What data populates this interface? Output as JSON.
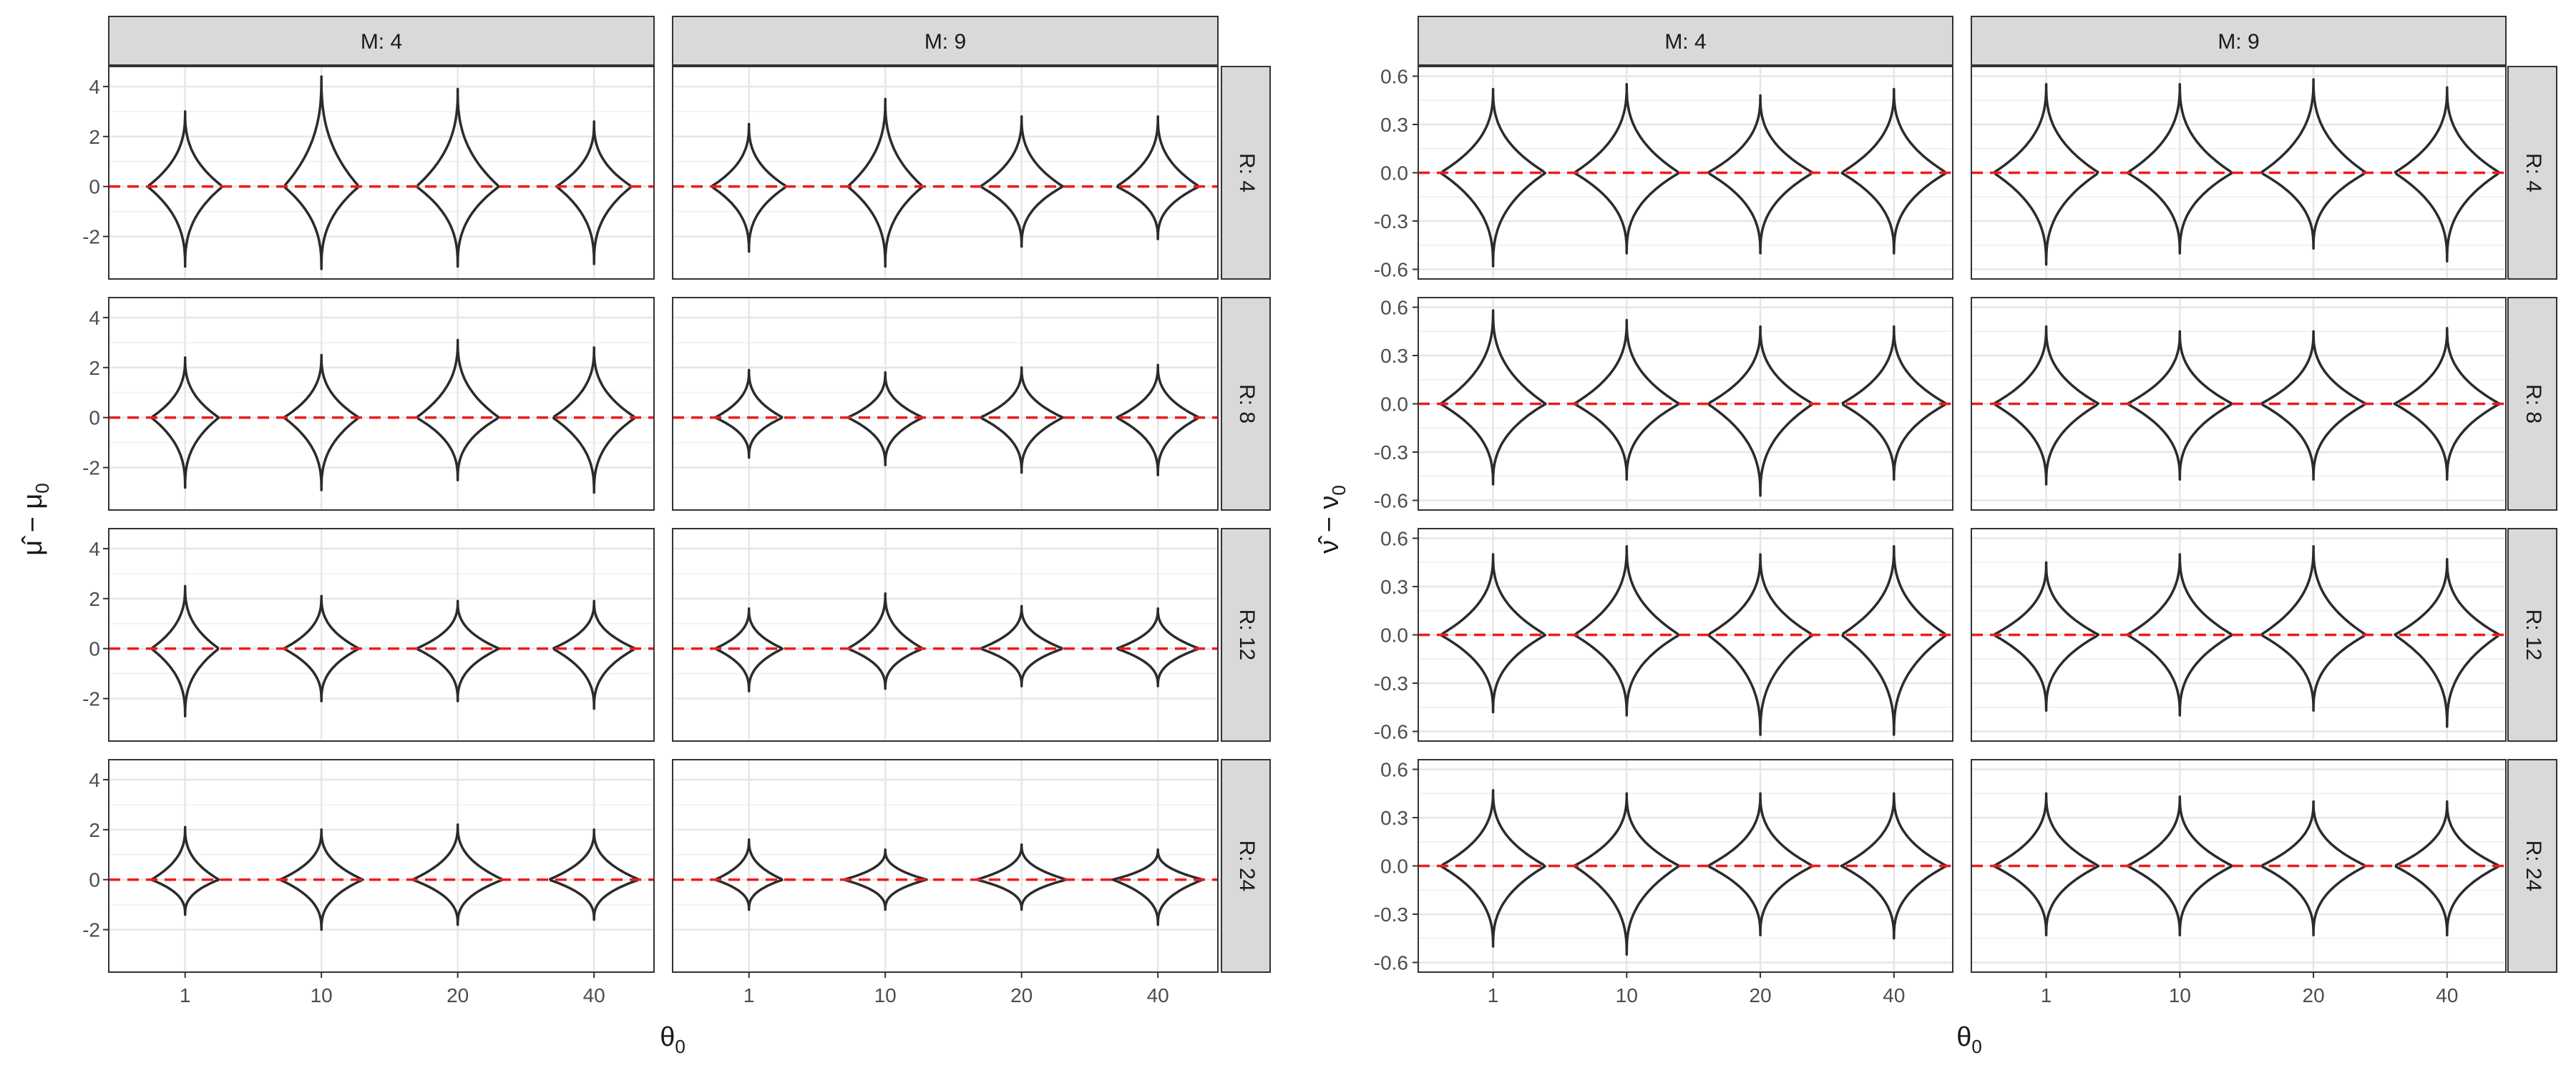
{
  "chart_data": [
    {
      "type": "violin",
      "ylabel_main": "μ̂ − μ",
      "ylabel_sub": "0",
      "xlabel_main": "θ",
      "xlabel_sub": "0",
      "col_facets": [
        "M: 4",
        "M: 9"
      ],
      "row_facets": [
        "R: 4",
        "R: 8",
        "R: 12",
        "R: 24"
      ],
      "categories": [
        "1",
        "10",
        "20",
        "40"
      ],
      "y_ticks": [
        -2,
        0,
        2,
        4
      ],
      "y_tick_labels": [
        "-2",
        "0",
        "2",
        "4"
      ],
      "ylim": [
        -3.7,
        4.8
      ],
      "reference_line": {
        "y": 0,
        "color": "#ee1c1c",
        "style": "dashed"
      },
      "panels": [
        {
          "row": "R: 4",
          "col": "M: 4",
          "violins": [
            {
              "min": -3.2,
              "max": 3.0,
              "width": 0.5
            },
            {
              "min": -3.3,
              "max": 4.4,
              "width": 0.5
            },
            {
              "min": -3.2,
              "max": 3.9,
              "width": 0.55
            },
            {
              "min": -3.1,
              "max": 2.6,
              "width": 0.5
            }
          ]
        },
        {
          "row": "R: 4",
          "col": "M: 9",
          "violins": [
            {
              "min": -2.6,
              "max": 2.5,
              "width": 0.5
            },
            {
              "min": -3.2,
              "max": 3.5,
              "width": 0.5
            },
            {
              "min": -2.4,
              "max": 2.8,
              "width": 0.55
            },
            {
              "min": -2.1,
              "max": 2.8,
              "width": 0.55
            }
          ]
        },
        {
          "row": "R: 8",
          "col": "M: 4",
          "violins": [
            {
              "min": -2.8,
              "max": 2.4,
              "width": 0.45
            },
            {
              "min": -2.9,
              "max": 2.5,
              "width": 0.5
            },
            {
              "min": -2.5,
              "max": 3.1,
              "width": 0.55
            },
            {
              "min": -3.0,
              "max": 2.8,
              "width": 0.55
            }
          ]
        },
        {
          "row": "R: 8",
          "col": "M: 9",
          "violins": [
            {
              "min": -1.6,
              "max": 1.9,
              "width": 0.45
            },
            {
              "min": -1.9,
              "max": 1.8,
              "width": 0.5
            },
            {
              "min": -2.2,
              "max": 2.0,
              "width": 0.55
            },
            {
              "min": -2.3,
              "max": 2.1,
              "width": 0.55
            }
          ]
        },
        {
          "row": "R: 12",
          "col": "M: 4",
          "violins": [
            {
              "min": -2.7,
              "max": 2.5,
              "width": 0.45
            },
            {
              "min": -2.1,
              "max": 2.1,
              "width": 0.5
            },
            {
              "min": -2.1,
              "max": 1.9,
              "width": 0.55
            },
            {
              "min": -2.4,
              "max": 1.9,
              "width": 0.55
            }
          ]
        },
        {
          "row": "R: 12",
          "col": "M: 9",
          "violins": [
            {
              "min": -1.7,
              "max": 1.6,
              "width": 0.45
            },
            {
              "min": -1.6,
              "max": 2.2,
              "width": 0.5
            },
            {
              "min": -1.5,
              "max": 1.7,
              "width": 0.55
            },
            {
              "min": -1.5,
              "max": 1.6,
              "width": 0.55
            }
          ]
        },
        {
          "row": "R: 24",
          "col": "M: 4",
          "violins": [
            {
              "min": -1.4,
              "max": 2.1,
              "width": 0.45
            },
            {
              "min": -2.0,
              "max": 2.0,
              "width": 0.55
            },
            {
              "min": -1.8,
              "max": 2.2,
              "width": 0.6
            },
            {
              "min": -1.6,
              "max": 2.0,
              "width": 0.6
            }
          ]
        },
        {
          "row": "R: 24",
          "col": "M: 9",
          "violins": [
            {
              "min": -1.2,
              "max": 1.6,
              "width": 0.45
            },
            {
              "min": -1.2,
              "max": 1.2,
              "width": 0.55
            },
            {
              "min": -1.2,
              "max": 1.4,
              "width": 0.6
            },
            {
              "min": -1.8,
              "max": 1.2,
              "width": 0.6
            }
          ]
        }
      ]
    },
    {
      "type": "violin",
      "ylabel_main": "ν̂ − ν",
      "ylabel_sub": "0",
      "xlabel_main": "θ",
      "xlabel_sub": "0",
      "col_facets": [
        "M: 4",
        "M: 9"
      ],
      "row_facets": [
        "R: 4",
        "R: 8",
        "R: 12",
        "R: 24"
      ],
      "categories": [
        "1",
        "10",
        "20",
        "40"
      ],
      "y_ticks": [
        -0.6,
        -0.3,
        0.0,
        0.3,
        0.6
      ],
      "y_tick_labels": [
        "-0.6",
        "-0.3",
        "0.0",
        "0.3",
        "0.6"
      ],
      "ylim": [
        -0.66,
        0.66
      ],
      "reference_line": {
        "y": 0,
        "color": "#ee1c1c",
        "style": "dashed"
      },
      "panels": [
        {
          "row": "R: 4",
          "col": "M: 4",
          "violins": [
            {
              "min": -0.58,
              "max": 0.52
            },
            {
              "min": -0.5,
              "max": 0.55
            },
            {
              "min": -0.5,
              "max": 0.48
            },
            {
              "min": -0.5,
              "max": 0.52
            }
          ]
        },
        {
          "row": "R: 4",
          "col": "M: 9",
          "violins": [
            {
              "min": -0.57,
              "max": 0.55
            },
            {
              "min": -0.5,
              "max": 0.55
            },
            {
              "min": -0.47,
              "max": 0.58
            },
            {
              "min": -0.55,
              "max": 0.53
            }
          ]
        },
        {
          "row": "R: 8",
          "col": "M: 4",
          "violins": [
            {
              "min": -0.5,
              "max": 0.58
            },
            {
              "min": -0.47,
              "max": 0.52
            },
            {
              "min": -0.57,
              "max": 0.48
            },
            {
              "min": -0.47,
              "max": 0.48
            }
          ]
        },
        {
          "row": "R: 8",
          "col": "M: 9",
          "violins": [
            {
              "min": -0.5,
              "max": 0.48
            },
            {
              "min": -0.47,
              "max": 0.45
            },
            {
              "min": -0.47,
              "max": 0.45
            },
            {
              "min": -0.47,
              "max": 0.47
            }
          ]
        },
        {
          "row": "R: 12",
          "col": "M: 4",
          "violins": [
            {
              "min": -0.48,
              "max": 0.5
            },
            {
              "min": -0.5,
              "max": 0.55
            },
            {
              "min": -0.62,
              "max": 0.5
            },
            {
              "min": -0.62,
              "max": 0.55
            }
          ]
        },
        {
          "row": "R: 12",
          "col": "M: 9",
          "violins": [
            {
              "min": -0.47,
              "max": 0.45
            },
            {
              "min": -0.5,
              "max": 0.5
            },
            {
              "min": -0.47,
              "max": 0.55
            },
            {
              "min": -0.57,
              "max": 0.47
            }
          ]
        },
        {
          "row": "R: 24",
          "col": "M: 4",
          "violins": [
            {
              "min": -0.5,
              "max": 0.47
            },
            {
              "min": -0.55,
              "max": 0.45
            },
            {
              "min": -0.43,
              "max": 0.45
            },
            {
              "min": -0.45,
              "max": 0.45
            }
          ]
        },
        {
          "row": "R: 24",
          "col": "M: 9",
          "violins": [
            {
              "min": -0.43,
              "max": 0.45
            },
            {
              "min": -0.43,
              "max": 0.43
            },
            {
              "min": -0.43,
              "max": 0.4
            },
            {
              "min": -0.43,
              "max": 0.4
            }
          ]
        }
      ]
    }
  ]
}
